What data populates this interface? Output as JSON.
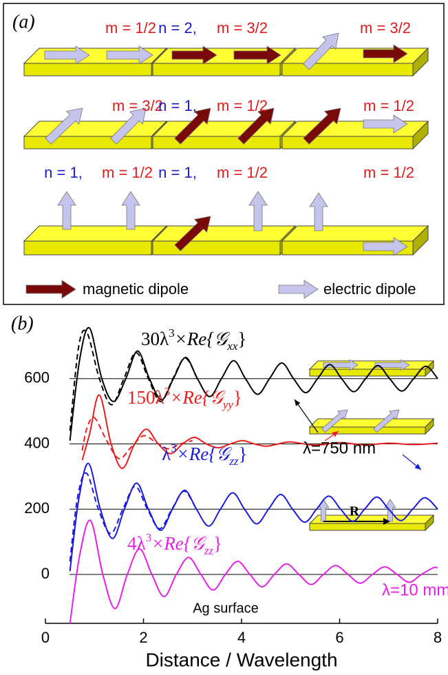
{
  "panel_a": {
    "label": "(a)",
    "rows": [
      {
        "cells": [
          {
            "m": "m = 1/2"
          },
          {
            "n": "n = 2,",
            "m": "m = 3/2"
          },
          {
            "m": "m = 3/2"
          }
        ]
      },
      {
        "cells": [
          {
            "m": "m = 3/2"
          },
          {
            "n": "n = 1,",
            "m": "m = 1/2"
          },
          {
            "m": "m = 1/2"
          }
        ]
      },
      {
        "cells": [
          {
            "n": "n = 1,",
            "m": "m = 1/2"
          },
          {
            "n": "n = 1,",
            "m": "m = 1/2"
          },
          {
            "m": "m = 1/2"
          }
        ]
      }
    ],
    "legend": {
      "magnetic": "magnetic dipole",
      "electric": "electric dipole"
    },
    "n_color": "#1a1acc",
    "m_color": "#e01a1a",
    "magnetic_color": "#7a0a0a",
    "electric_color": "#c4c4ec"
  },
  "chart_data": {
    "type": "line",
    "panel_label": "(b)",
    "xlabel": "Distance / Wavelength",
    "xlim": [
      0,
      8
    ],
    "ylim": [
      -150,
      800
    ],
    "xticks": [
      0,
      2,
      4,
      6,
      8
    ],
    "yticks": [
      0,
      200,
      400,
      600
    ],
    "grid": true,
    "series": [
      {
        "color": "#000000",
        "dashed": false,
        "label": {
          "main": "30λ",
          "sup": "3",
          "rest": "×Re{𝒢",
          "sub": "xx",
          "close": "}"
        },
        "x": [
          0.5,
          0.7,
          0.9,
          1.15,
          1.39,
          1.64,
          1.88,
          2.12,
          2.37,
          2.61,
          2.86,
          3.1,
          3.35,
          3.59,
          3.84,
          4.08,
          4.33,
          4.57,
          4.82,
          5.06,
          5.31,
          5.55,
          5.8,
          6.04,
          6.29,
          6.53,
          6.78,
          7.02,
          7.27,
          7.51,
          7.76,
          8.0
        ],
        "values": [
          410,
          660,
          755,
          600,
          530,
          600,
          685,
          600,
          535,
          600,
          665,
          600,
          545,
          600,
          655,
          600,
          552,
          600,
          648,
          600,
          557,
          600,
          643,
          600,
          560,
          600,
          640,
          600,
          562,
          600,
          638,
          600
        ]
      },
      {
        "color": "#000000",
        "dashed": true,
        "x": [
          0.5,
          0.68,
          0.85,
          1.1,
          1.35,
          1.6,
          1.85,
          2.1,
          2.35,
          2.6,
          2.85,
          3.1
        ],
        "values": [
          440,
          700,
          740,
          600,
          520,
          600,
          680,
          600,
          530,
          600,
          663,
          600
        ]
      },
      {
        "color": "#ee1c1c",
        "dashed": false,
        "label": {
          "main": "150λ",
          "sup": "3",
          "rest": "×Re{𝒢",
          "sub": "yy",
          "close": "}"
        },
        "x": [
          0.75,
          0.9,
          1.1,
          1.34,
          1.57,
          1.82,
          2.06,
          2.3,
          2.55,
          2.8,
          3.04,
          3.28,
          3.53,
          3.77,
          4.02,
          4.26,
          4.5,
          4.75,
          5.0,
          5.5,
          6.0,
          6.5,
          7.0,
          7.5,
          8.0
        ],
        "values": [
          350,
          430,
          550,
          400,
          325,
          400,
          445,
          400,
          370,
          400,
          420,
          400,
          388,
          400,
          410,
          400,
          393,
          400,
          406,
          396,
          404,
          397,
          402,
          398,
          402
        ]
      },
      {
        "color": "#ee1c1c",
        "dashed": true,
        "x": [
          0.75,
          0.85,
          1.0,
          1.25,
          1.5,
          1.75,
          2.0,
          2.25,
          2.5,
          2.75,
          3.0
        ],
        "values": [
          380,
          450,
          480,
          410,
          355,
          390,
          425,
          405,
          385,
          400,
          410
        ]
      },
      {
        "color": "#1a1adc",
        "dashed": false,
        "label": {
          "main": "λ",
          "sup": "3",
          "rest": "×Re{𝒢",
          "sub": "zz",
          "close": "}"
        },
        "x": [
          0.5,
          0.68,
          0.88,
          1.12,
          1.37,
          1.61,
          1.86,
          2.1,
          2.35,
          2.59,
          2.84,
          3.08,
          3.33,
          3.57,
          3.82,
          4.06,
          4.31,
          4.55,
          4.8,
          5.04,
          5.29,
          5.53,
          5.78,
          6.02,
          6.27,
          6.51,
          6.76,
          7.0,
          7.25,
          7.49,
          7.74,
          8.0
        ],
        "values": [
          10,
          230,
          340,
          200,
          110,
          200,
          280,
          200,
          135,
          200,
          258,
          200,
          148,
          200,
          250,
          200,
          155,
          200,
          245,
          200,
          160,
          200,
          240,
          200,
          163,
          200,
          237,
          200,
          165,
          200,
          235,
          200
        ]
      },
      {
        "color": "#1a1adc",
        "dashed": true,
        "x": [
          0.5,
          0.66,
          0.84,
          1.08,
          1.33,
          1.58,
          1.83,
          2.08,
          2.33,
          2.58,
          2.83,
          3.08
        ],
        "values": [
          40,
          240,
          310,
          200,
          125,
          200,
          270,
          200,
          140,
          200,
          255,
          200
        ]
      },
      {
        "color": "#e81ee8",
        "dashed": false,
        "label": {
          "main": "4λ",
          "sup": "3",
          "rest": "×Re{𝒢",
          "sub": "zz",
          "close": "}"
        },
        "x": [
          0.5,
          0.7,
          0.92,
          1.17,
          1.42,
          1.67,
          1.92,
          2.17,
          2.42,
          2.67,
          2.92,
          3.17,
          3.42,
          3.67,
          3.92,
          4.17,
          4.42,
          4.67,
          4.92,
          5.17,
          5.42,
          5.67,
          5.92,
          6.17,
          6.42,
          6.67,
          6.92,
          7.17,
          7.42,
          7.67,
          7.92,
          8.0
        ],
        "values": [
          -150,
          60,
          165,
          0,
          -105,
          0,
          78,
          0,
          -68,
          0,
          52,
          0,
          -48,
          0,
          40,
          0,
          -38,
          0,
          32,
          0,
          -31,
          0,
          27,
          0,
          -27,
          0,
          23,
          0,
          -24,
          0,
          21,
          20
        ]
      }
    ],
    "annotations": {
      "wavelength_optical": "λ=750 nm",
      "wavelength_mm": "λ=10 mm",
      "surface": "Ag surface",
      "separation": "R"
    }
  }
}
